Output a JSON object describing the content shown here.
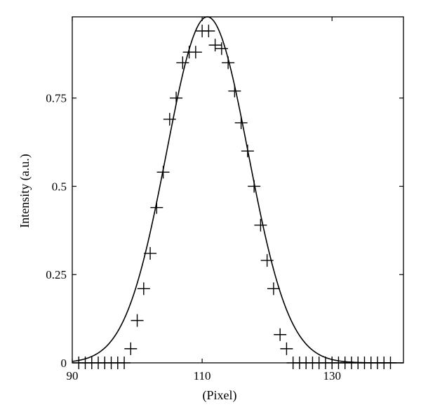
{
  "chart_data": {
    "type": "scatter",
    "title": "",
    "xlabel": "(Pixel)",
    "ylabel": "Intensity (a.u.)",
    "xlim": [
      90,
      141
    ],
    "ylim": [
      0,
      0.98
    ],
    "x_ticks": [
      90,
      110,
      130
    ],
    "y_ticks": [
      0,
      0.25,
      0.5,
      0.75
    ],
    "x_tick_labels": [
      "90",
      "110",
      "130"
    ],
    "y_tick_labels": [
      "0",
      "0.25",
      "0.5",
      "0.75"
    ],
    "grid": false,
    "legend": "none",
    "series": [
      {
        "kind": "markers",
        "marker": "plus",
        "x": [
          91,
          92,
          93,
          94,
          95,
          96,
          97,
          98,
          99,
          100,
          101,
          102,
          103,
          104,
          105,
          106,
          107,
          108,
          109,
          110,
          111,
          112,
          113,
          114,
          115,
          116,
          117,
          118,
          119,
          120,
          121,
          122,
          123,
          124,
          125,
          126,
          127,
          128,
          129,
          130,
          131,
          132,
          133,
          134,
          135,
          136,
          137,
          138,
          139
        ],
        "y": [
          0,
          0,
          0,
          0,
          0,
          0,
          0,
          0,
          0.04,
          0.12,
          0.21,
          0.31,
          0.44,
          0.54,
          0.69,
          0.75,
          0.85,
          0.88,
          0.88,
          0.94,
          0.94,
          0.9,
          0.89,
          0.85,
          0.77,
          0.68,
          0.6,
          0.5,
          0.39,
          0.29,
          0.21,
          0.08,
          0.04,
          0,
          0,
          0,
          0,
          0,
          0,
          0,
          0,
          0,
          0,
          0,
          0,
          0,
          0,
          0,
          0
        ]
      },
      {
        "kind": "fit-curve",
        "function": "gaussian",
        "amplitude": 0.98,
        "center": 110.8,
        "sigma": 6.3
      }
    ]
  }
}
